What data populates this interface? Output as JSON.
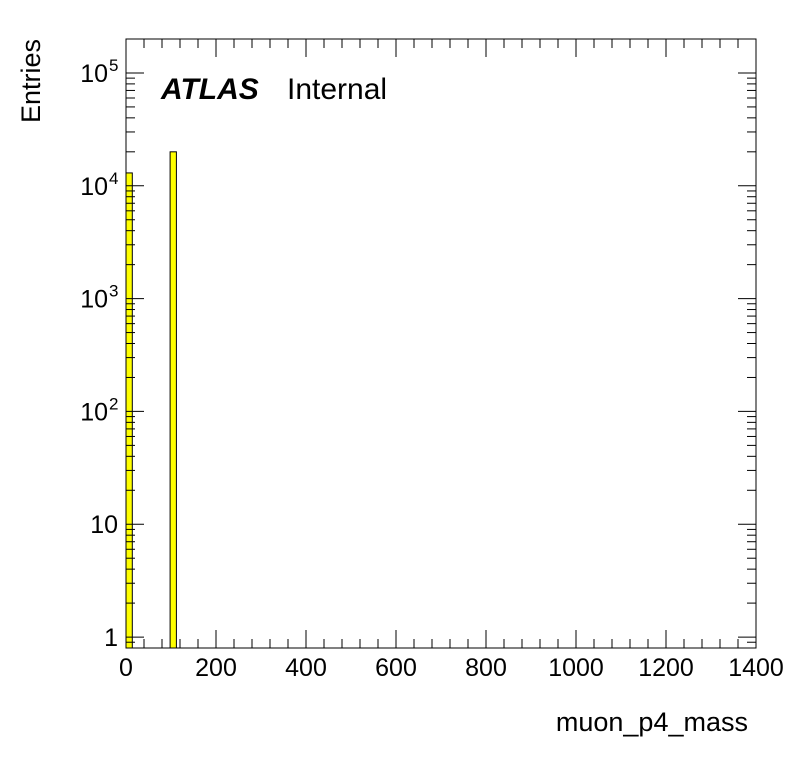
{
  "chart_data": {
    "type": "bar",
    "xlabel": "muon_p4_mass",
    "ylabel": "Entries",
    "xlim": [
      0,
      1400
    ],
    "ylim": [
      0.8,
      200000
    ],
    "yscale": "log",
    "grid": false,
    "bin_width": 14,
    "bars": [
      {
        "x_low": 0,
        "x_high": 14,
        "value": 13000
      },
      {
        "x_low": 98,
        "x_high": 112,
        "value": 20000
      }
    ],
    "bar_color": "#ffff00",
    "edge_color": "#000000",
    "x_ticks": [
      {
        "value": 0,
        "label": "0"
      },
      {
        "value": 200,
        "label": "200"
      },
      {
        "value": 400,
        "label": "400"
      },
      {
        "value": 600,
        "label": "600"
      },
      {
        "value": 800,
        "label": "800"
      },
      {
        "value": 1000,
        "label": "1000"
      },
      {
        "value": 1200,
        "label": "1200"
      },
      {
        "value": 1400,
        "label": "1400"
      }
    ],
    "y_ticks": [
      {
        "value": 1,
        "base": "1",
        "exp": ""
      },
      {
        "value": 10,
        "base": "10",
        "exp": ""
      },
      {
        "value": 100,
        "base": "10",
        "exp": "2"
      },
      {
        "value": 1000,
        "base": "10",
        "exp": "3"
      },
      {
        "value": 10000,
        "base": "10",
        "exp": "4"
      },
      {
        "value": 100000,
        "base": "10",
        "exp": "5"
      }
    ],
    "annotation": {
      "experiment": "ATLAS",
      "status": "Internal"
    }
  }
}
